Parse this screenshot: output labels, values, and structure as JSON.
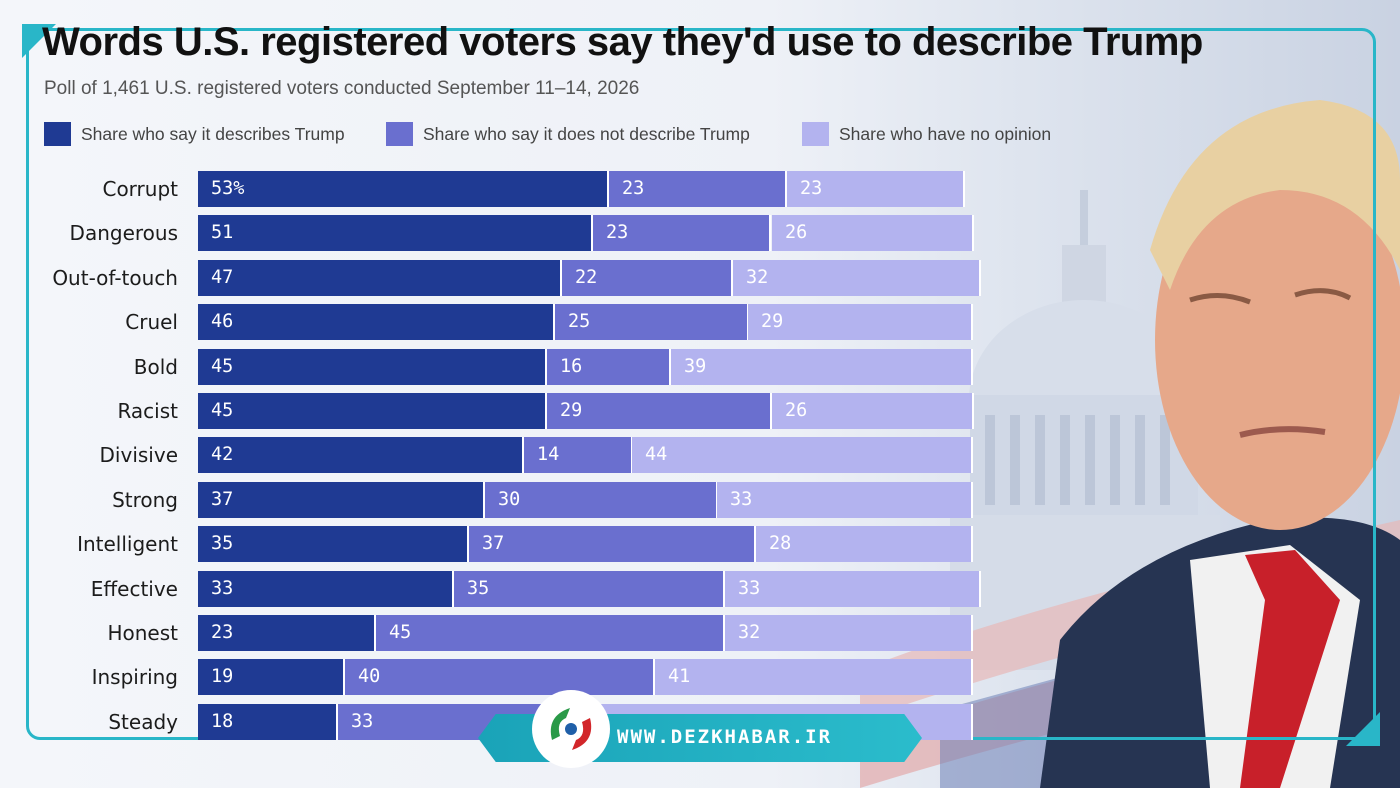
{
  "title": "Words U.S. registered voters say they'd use to describe Trump",
  "subtitle": "Poll of 1,461 U.S. registered voters conducted September 11–14, 2026",
  "footer": {
    "website": "WWW.DEZKHABAR.IR"
  },
  "icons": {
    "logo": "dezkhabar-logo-icon"
  },
  "colors": {
    "describes": "#1f3a93",
    "does_not_describe": "#6a6fcf",
    "no_opinion": "#b3b3ef",
    "frame_accent": "#29b6c8"
  },
  "chart_data": {
    "type": "bar",
    "orientation": "horizontal",
    "stacked": true,
    "title": "Words U.S. registered voters say they'd use to describe Trump",
    "subtitle": "Poll of 1,461 U.S. registered voters conducted September 11–14, 2026",
    "legend_position": "top",
    "grid": false,
    "xlim": [
      0,
      100
    ],
    "categories": [
      "Corrupt",
      "Dangerous",
      "Out-of-touch",
      "Cruel",
      "Bold",
      "Racist",
      "Divisive",
      "Strong",
      "Intelligent",
      "Effective",
      "Honest",
      "Inspiring",
      "Steady"
    ],
    "series": [
      {
        "name": "Share who say it describes Trump",
        "values": [
          53,
          51,
          47,
          46,
          45,
          45,
          42,
          37,
          35,
          33,
          23,
          19,
          18
        ]
      },
      {
        "name": "Share who say it does not describe Trump",
        "values": [
          23,
          23,
          22,
          25,
          16,
          29,
          14,
          30,
          37,
          35,
          45,
          40,
          33
        ]
      },
      {
        "name": "Share who have no opinion",
        "values": [
          23,
          26,
          32,
          29,
          39,
          26,
          44,
          33,
          28,
          33,
          32,
          41,
          49
        ]
      }
    ],
    "value_labels": [
      [
        "53%",
        "23",
        "23"
      ],
      [
        "51",
        "23",
        "26"
      ],
      [
        "47",
        "22",
        "32"
      ],
      [
        "46",
        "25",
        "29"
      ],
      [
        "45",
        "16",
        "39"
      ],
      [
        "45",
        "29",
        "26"
      ],
      [
        "42",
        "14",
        "44"
      ],
      [
        "37",
        "30",
        "33"
      ],
      [
        "35",
        "37",
        "28"
      ],
      [
        "33",
        "35",
        "33"
      ],
      [
        "23",
        "45",
        "32"
      ],
      [
        "19",
        "40",
        "41"
      ],
      [
        "18",
        "33",
        ""
      ]
    ]
  }
}
